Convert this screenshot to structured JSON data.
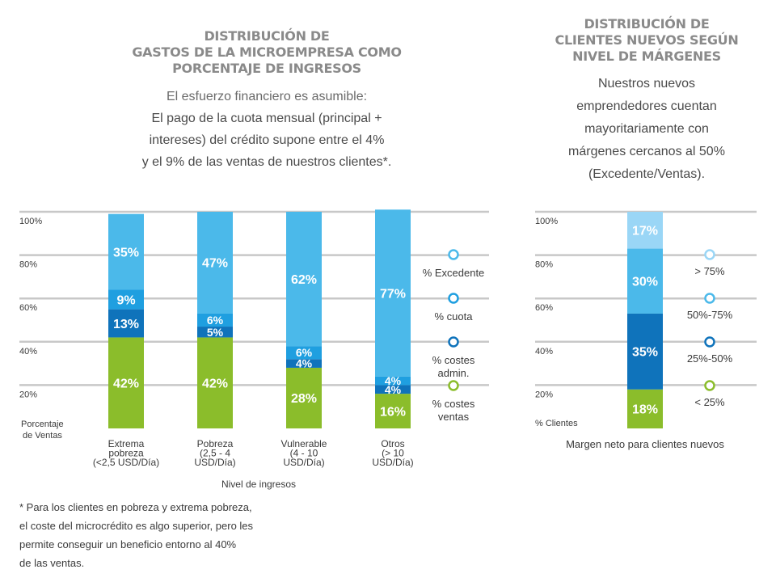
{
  "left_panel": {
    "title_lines": [
      "DISTRIBUCIÓN DE",
      "GASTOS DE LA MICROEMPRESA COMO",
      "PORCENTAJE DE INGRESOS"
    ],
    "subtitle_lines": [
      "El esfuerzo financiero es asumible:",
      "El pago de la cuota mensual (principal +",
      "intereses) del crédito supone entre el 4%",
      "y el 9% de las ventas de nuestros clientes*."
    ],
    "footnote_lines": [
      "* Para los clientes en pobreza y extrema pobreza,",
      "el coste del microcrédito es algo superior, pero les",
      "permite conseguir un beneficio entorno al 40%",
      "de las ventas."
    ]
  },
  "right_panel": {
    "title_lines": [
      "DISTRIBUCIÓN DE",
      "CLIENTES NUEVOS SEGÚN",
      "NIVEL DE MÁRGENES"
    ],
    "subtitle_lines": [
      "Nuestros nuevos",
      "emprendedores cuentan",
      "mayoritariamente con",
      "márgenes cercanos al 50%",
      "(Excedente/Ventas)."
    ]
  },
  "colors": {
    "green": "#8bbd2b",
    "dark_blue": "#0f73bb",
    "mid_blue": "#1f9fe0",
    "light_blue": "#4bb9ea",
    "pale_blue": "#9ad6f6",
    "grid": "#c8c8c8"
  },
  "chart_data": [
    {
      "type": "bar",
      "stacked": true,
      "categories": [
        "Extrema pobreza (<2,5 USD/Día)",
        "Pobreza (2,5 - 4 USD/Día)",
        "Vulnerable (4 - 10 USD/Día)",
        "Otros (> 10 USD/Día)"
      ],
      "category_label_lines": [
        [
          "Extrema",
          "pobreza",
          "(<2,5 USD/Día)"
        ],
        [
          "Pobreza",
          "(2,5 - 4",
          "USD/Día)"
        ],
        [
          "Vulnerable",
          "(4 - 10",
          "USD/Día)"
        ],
        [
          "Otros",
          "(> 10",
          "USD/Día)"
        ]
      ],
      "series": [
        {
          "name": "% costes ventas",
          "legend_lines": [
            "% costes",
            "ventas"
          ],
          "color": "#8bbd2b",
          "values": [
            42,
            42,
            28,
            16
          ]
        },
        {
          "name": "% costes admin.",
          "legend_lines": [
            "% costes",
            "admin."
          ],
          "color": "#0f73bb",
          "values": [
            13,
            5,
            4,
            4
          ]
        },
        {
          "name": "% cuota",
          "legend_lines": [
            "% cuota"
          ],
          "color": "#1f9fe0",
          "values": [
            9,
            6,
            6,
            4
          ]
        },
        {
          "name": "% Excedente",
          "legend_lines": [
            "% Excedente"
          ],
          "color": "#4bb9ea",
          "values": [
            35,
            47,
            62,
            77
          ]
        }
      ],
      "data_labels": [
        [
          "42%",
          "13%",
          "9%",
          "35%"
        ],
        [
          "42%",
          "5%",
          "6%",
          "47%"
        ],
        [
          "28%",
          "4%",
          "6%",
          "62%"
        ],
        [
          "16%",
          "4%",
          "4%",
          "77%"
        ]
      ],
      "yticks": [
        "100%",
        "80%",
        "60%",
        "40%",
        "20%"
      ],
      "ylabel_lines": [
        "Porcentaje",
        "de Ventas"
      ],
      "xlabel": "Nivel de ingresos",
      "ylim": [
        0,
        100
      ]
    },
    {
      "type": "bar",
      "stacked": true,
      "categories": [
        ""
      ],
      "series": [
        {
          "name": "< 25%",
          "color": "#8bbd2b",
          "values": [
            18
          ]
        },
        {
          "name": "25%-50%",
          "color": "#0f73bb",
          "values": [
            35
          ]
        },
        {
          "name": "50%-75%",
          "color": "#4bb9ea",
          "values": [
            30
          ]
        },
        {
          "name": "> 75%",
          "color": "#9ad6f6",
          "values": [
            17
          ]
        }
      ],
      "data_labels": [
        [
          "18%",
          "35%",
          "30%",
          "17%"
        ]
      ],
      "yticks": [
        "100%",
        "80%",
        "60%",
        "40%",
        "20%"
      ],
      "ylabel": "% Clientes",
      "xlabel": "Margen neto para clientes nuevos",
      "ylim": [
        0,
        100
      ]
    }
  ]
}
